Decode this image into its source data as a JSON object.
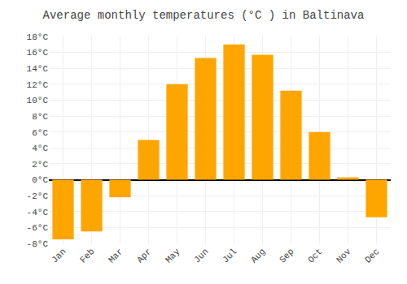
{
  "chart_data": {
    "type": "bar",
    "title": "Average monthly temperatures (°C ) in Baltinava",
    "categories": [
      "Jan",
      "Feb",
      "Mar",
      "Apr",
      "May",
      "Jun",
      "Jul",
      "Aug",
      "Sep",
      "Oct",
      "Nov",
      "Dec"
    ],
    "values": [
      -7.5,
      -6.5,
      -2.2,
      5.0,
      12.0,
      15.3,
      17.0,
      15.7,
      11.2,
      6.0,
      0.3,
      -4.7
    ],
    "color": "#FFA500",
    "ylim": [
      -8,
      18
    ],
    "yticks": [
      {
        "value": -8,
        "label": "-8°C"
      },
      {
        "value": -6,
        "label": "-6°C"
      },
      {
        "value": -4,
        "label": "-4°C"
      },
      {
        "value": -2,
        "label": "-2°C"
      },
      {
        "value": 0,
        "label": "0°C"
      },
      {
        "value": 2,
        "label": "2°C"
      },
      {
        "value": 4,
        "label": "4°C"
      },
      {
        "value": 6,
        "label": "6°C"
      },
      {
        "value": 8,
        "label": "8°C"
      },
      {
        "value": 10,
        "label": "10°C"
      },
      {
        "value": 12,
        "label": "12°C"
      },
      {
        "value": 14,
        "label": "14°C"
      },
      {
        "value": 16,
        "label": "16°C"
      },
      {
        "value": 18,
        "label": "18°C"
      }
    ],
    "grid": true
  }
}
